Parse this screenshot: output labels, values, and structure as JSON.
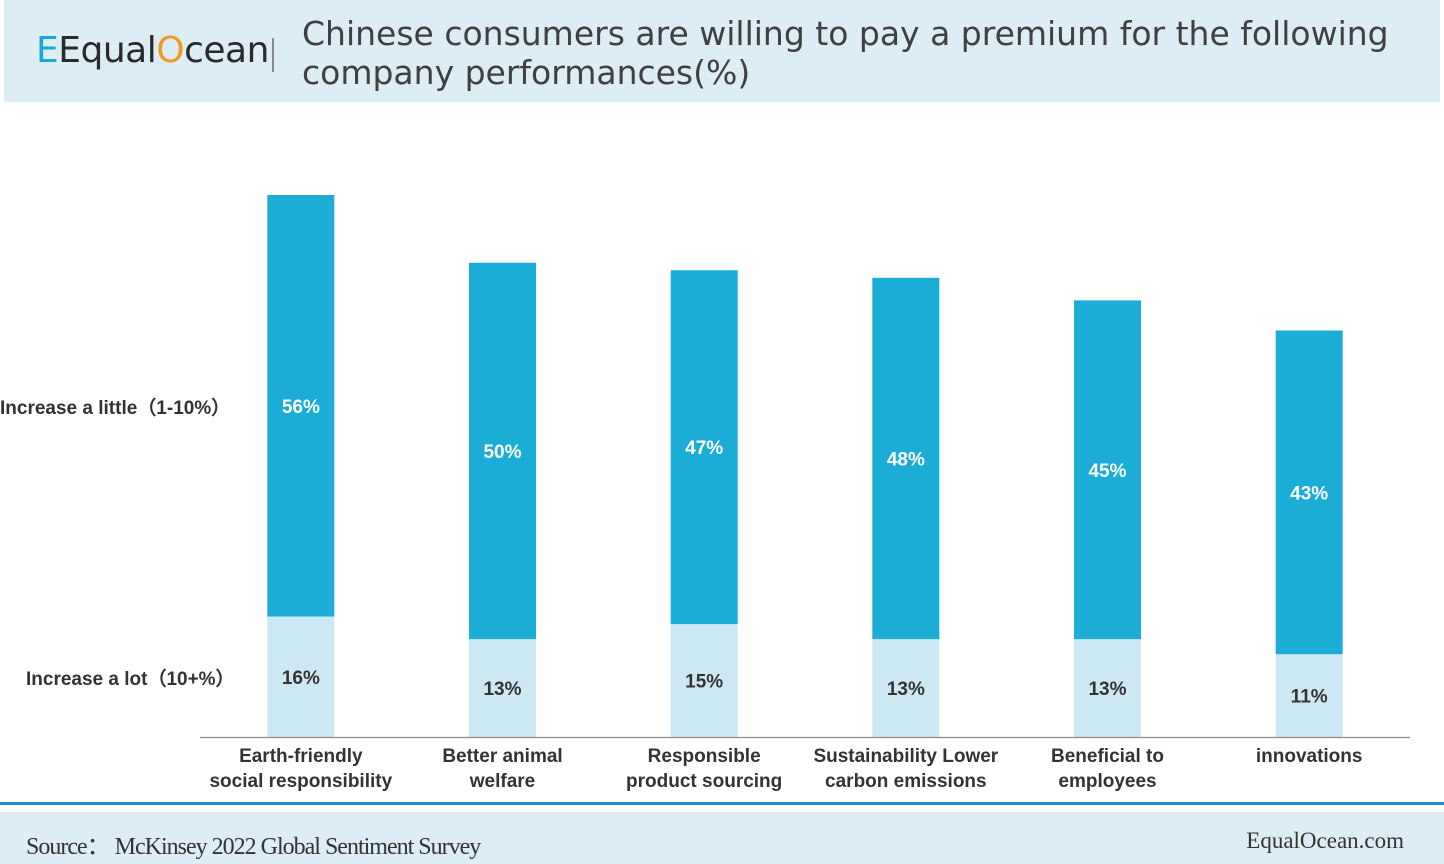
{
  "header": {
    "logo_prefix": "Equal",
    "logo_suffix": "cean",
    "title": "Chinese consumers are willing to pay a premium for the following company performances(%)"
  },
  "row_labels": {
    "top": "Increase a little（1-10%）",
    "bottom": "Increase a lot（10+%）"
  },
  "chart_data": {
    "type": "bar",
    "stacked": true,
    "categories": [
      [
        "Earth-friendly",
        "social responsibility"
      ],
      [
        "Better animal",
        "welfare"
      ],
      [
        "Responsible",
        "product sourcing"
      ],
      [
        "Sustainability Lower",
        "carbon emissions"
      ],
      [
        "Beneficial to",
        "employees"
      ],
      [
        "innovations"
      ]
    ],
    "series": [
      {
        "name": "Increase a lot（10+%）",
        "values": [
          16,
          13,
          15,
          13,
          13,
          11
        ],
        "color": "#cde8f5",
        "label_color": "#333333"
      },
      {
        "name": "Increase a little（1-10%）",
        "values": [
          56,
          50,
          47,
          48,
          45,
          43
        ],
        "color": "#1cadd6",
        "label_color": "#ffffff"
      }
    ],
    "value_suffix": "%",
    "ylim": [
      0,
      72
    ],
    "grid": false,
    "legend": "left row labels"
  },
  "footer": {
    "source": "Source：  McKinsey 2022 Global Sentiment Survey",
    "site": "EqualOcean.com"
  }
}
